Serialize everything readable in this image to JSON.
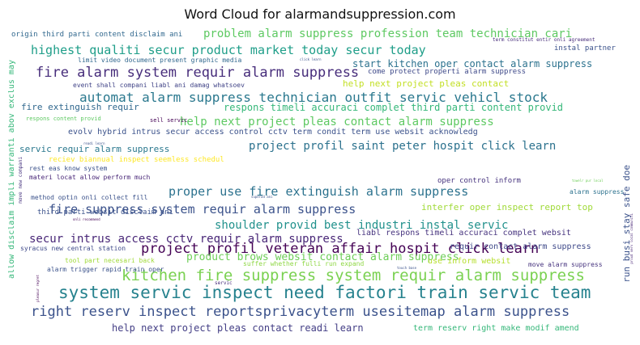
{
  "title": "Word Cloud for alarmandsuppression.com",
  "chart_data": {
    "type": "wordcloud",
    "title": "Word Cloud for alarmandsuppression.com",
    "phrases": [
      {
        "text": "system servic inspect need factori train servic team",
        "color": "#26828e"
      },
      {
        "text": "kitchen fire suppress system requir alarm suppress",
        "color": "#7ad151"
      },
      {
        "text": "right reserv inspect reportsprivacyterm usesitemap alarm suppress",
        "color": "#3b528b"
      },
      {
        "text": "project profil veteran affair hospit click learn",
        "color": "#440154"
      },
      {
        "text": "fire alarm system requir alarm suppress",
        "color": "#472d7b"
      },
      {
        "text": "automat alarm suppress technician outfit servic vehicl stock",
        "color": "#2a788e"
      },
      {
        "text": "highest qualiti secur product market today secur today",
        "color": "#1f9e89"
      },
      {
        "text": "fire suppress system requir alarm suppress",
        "color": "#3b528b"
      },
      {
        "text": "proper use fire extinguish alarm suppress",
        "color": "#2c728e"
      },
      {
        "text": "project profil saint peter hospit click learn",
        "color": "#2c728e"
      },
      {
        "text": "help next project pleas contact alarm suppress",
        "color": "#5ec962"
      },
      {
        "text": "problem alarm suppress profession team technician cari",
        "color": "#5ec962"
      },
      {
        "text": "secur intrus access cctv requir alarm suppress",
        "color": "#482677"
      },
      {
        "text": "shoulder provid best industri instal servic",
        "color": "#21918c"
      },
      {
        "text": "product brows websit contact alarm suppress",
        "color": "#6ece58"
      },
      {
        "text": "start kitchen oper contact alarm suppress",
        "color": "#2c728e"
      },
      {
        "text": "help next project pleas contact readi learn",
        "color": "#433e85"
      },
      {
        "text": "fire extinguish requir",
        "color": "#31688e"
      },
      {
        "text": "respons timeli accuraci complet third parti content provid",
        "color": "#35b779"
      },
      {
        "text": "servic requir alarm suppress",
        "color": "#2a788e"
      },
      {
        "text": "evolv hybrid intrus secur access control cctv term condit term use websit acknowledg",
        "color": "#3b528b"
      },
      {
        "text": "help next project pleas contact",
        "color": "#c2df23"
      },
      {
        "text": "interfer oper inspect report top",
        "color": "#a0da39"
      },
      {
        "text": "liabl respons timeli accuraci complet websit",
        "color": "#46337e"
      },
      {
        "text": "use inform websit",
        "color": "#b5de2b"
      },
      {
        "text": "requir contact alarm suppress",
        "color": "#3e4989"
      },
      {
        "text": "term reserv right make modif amend",
        "color": "#35b779"
      },
      {
        "text": "origin third parti content disclaim ani",
        "color": "#31688e"
      },
      {
        "text": "limit video document present graphic media",
        "color": "#31688e"
      },
      {
        "text": "event shall compani liabl ani damag whatsoev",
        "color": "#414487"
      },
      {
        "text": "come protect properti alarm suppress",
        "color": "#3e4989"
      },
      {
        "text": "instal partner",
        "color": "#3b528b"
      },
      {
        "text": "term constitut entir onli agreement",
        "color": "#472d7b"
      },
      {
        "text": "respons content provid",
        "color": "#5ec962"
      },
      {
        "text": "sell servic",
        "color": "#440154"
      },
      {
        "text": "reciev biannual inspect seemless schedul",
        "color": "#fde725"
      },
      {
        "text": "rest eas know system",
        "color": "#3b528b"
      },
      {
        "text": "materi locat allow perform much",
        "color": "#482677"
      },
      {
        "text": "oper control inform",
        "color": "#46337e"
      },
      {
        "text": "alarm suppress",
        "color": "#2c728e"
      },
      {
        "text": "method optin onli collect fill",
        "color": "#3b528b"
      },
      {
        "text": "third parti websit disclaim ani",
        "color": "#3b528b"
      },
      {
        "text": "syracus new central station",
        "color": "#3e4989"
      },
      {
        "text": "alarm trigger rapid train oper",
        "color": "#3b528b"
      },
      {
        "text": "tool part necesari back",
        "color": "#a0da39"
      },
      {
        "text": "suffer whether fulli run expand",
        "color": "#8fd744"
      },
      {
        "text": "move alarm suppress",
        "color": "#46337e"
      },
      {
        "text": "servic",
        "color": "#472d7b"
      },
      {
        "text": "allow disclaim impli warranti abov exclus may",
        "color": "#35b779"
      },
      {
        "text": "run busi stay safe doe",
        "color": "#3b528b"
      },
      {
        "text": "move new compani",
        "color": "#46337e"
      },
      {
        "text": "proud serv local communiti",
        "color": "#482677"
      },
      {
        "text": "pleasur regret",
        "color": "#440154"
      },
      {
        "text": "onli recommend",
        "color": "#440154"
      },
      {
        "text": "readi learn",
        "color": "#3b528b"
      },
      {
        "text": "superad ani",
        "color": "#3b528b"
      },
      {
        "text": "touch base",
        "color": "#3b528b"
      },
      {
        "text": "towelr pur local",
        "color": "#6ece58"
      },
      {
        "text": "click learn",
        "color": "#3b528b"
      }
    ]
  }
}
